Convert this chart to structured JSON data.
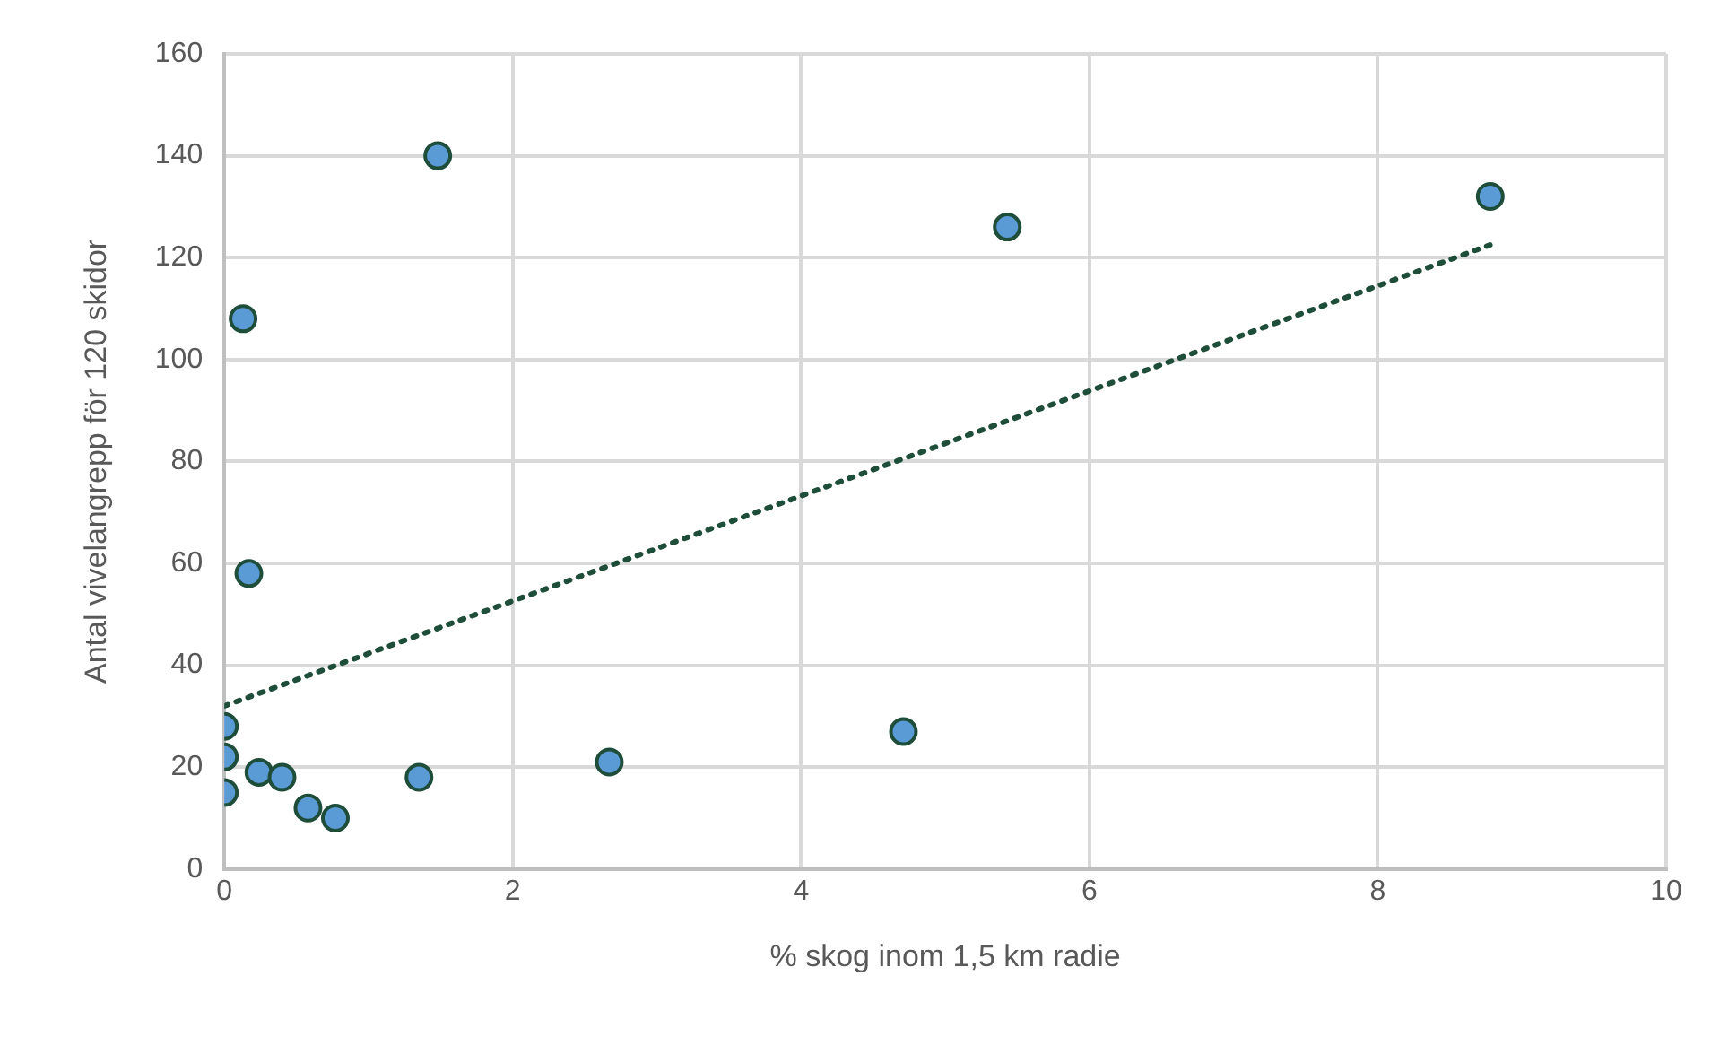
{
  "chart_data": {
    "type": "scatter",
    "xlabel": "% skog inom 1,5 km radie",
    "ylabel": "Antal vivelangrepp för 120 skidor",
    "xlim": [
      0,
      10
    ],
    "xticks": [
      0,
      2,
      4,
      6,
      8,
      10
    ],
    "ylim": [
      0,
      160
    ],
    "yticks": [
      0,
      20,
      40,
      60,
      80,
      100,
      120,
      140,
      160
    ],
    "grid": true,
    "legend": false,
    "series": [
      {
        "color": "#5b9bd5",
        "marker": "circle",
        "x": [
          0,
          0,
          0,
          0.24,
          0.4,
          0.58,
          0.77,
          1.35,
          2.67,
          0.13,
          1.48,
          0.17,
          5.43,
          8.78,
          4.71
        ],
        "values": [
          28,
          22,
          15,
          19,
          18,
          12,
          10,
          18,
          21,
          108,
          140,
          58,
          126,
          132,
          27
        ]
      },
      {
        "type": "line",
        "color": "#1e4d3a",
        "line_style": "dotted",
        "marker": "none",
        "x": [
          0,
          8.78
        ],
        "values": [
          32,
          122.5
        ]
      }
    ]
  }
}
